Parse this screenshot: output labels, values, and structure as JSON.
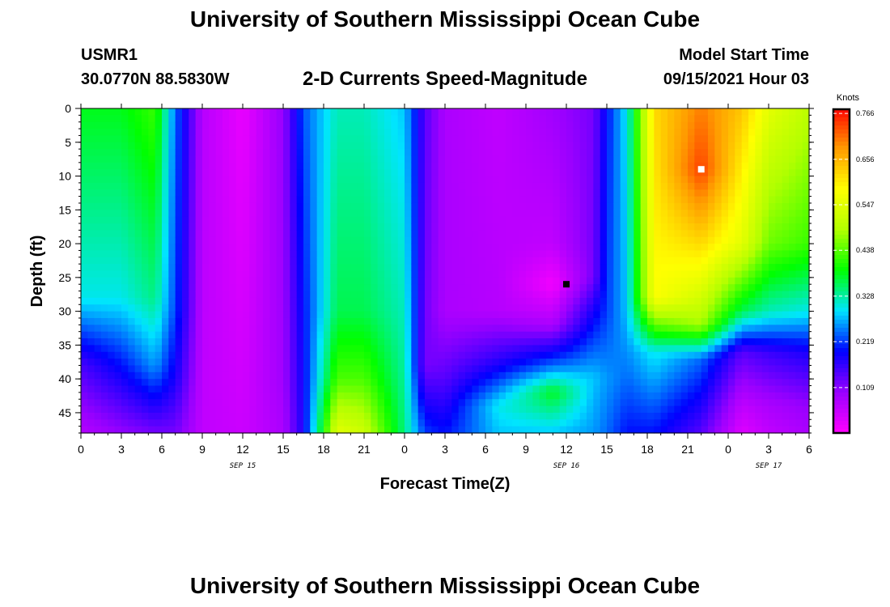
{
  "header": {
    "title": "University of Southern Mississippi Ocean Cube",
    "station_id": "USMR1",
    "station_coords": "30.0770N  88.5830W",
    "subtitle": "2-D Currents Speed-Magnitude",
    "model_start_label": "Model Start Time",
    "model_start_value": "09/15/2021 Hour 03"
  },
  "footer": {
    "title": "University of Southern Mississippi Ocean Cube"
  },
  "chart_data": {
    "type": "heatmap",
    "title": "2-D Currents Speed-Magnitude",
    "xlabel": "Forecast Time(Z)",
    "ylabel": "Depth (ft)",
    "x_tick_labels": [
      "0",
      "3",
      "6",
      "9",
      "12",
      "15",
      "18",
      "21",
      "0",
      "3",
      "6",
      "9",
      "12",
      "15",
      "18",
      "21",
      "0",
      "3",
      "6"
    ],
    "x_range_hours": [
      0,
      54
    ],
    "date_labels": [
      {
        "text": "SEP 15",
        "at_hour": 12
      },
      {
        "text": "SEP 16",
        "at_hour": 36
      },
      {
        "text": "SEP 17",
        "at_hour": 51
      }
    ],
    "y_tick_labels": [
      "0",
      "5",
      "10",
      "15",
      "20",
      "25",
      "30",
      "35",
      "40",
      "45"
    ],
    "y_range_ft": [
      0,
      48
    ],
    "y_inverted": true,
    "colorbar": {
      "title": "Knots",
      "ticks": [
        0.766,
        0.656,
        0.547,
        0.438,
        0.328,
        0.219,
        0.109
      ],
      "range": [
        0.0,
        0.78
      ],
      "colors": [
        "#ff00ff",
        "#9900ff",
        "#0000ff",
        "#00e5ff",
        "#00ff00",
        "#b3ff00",
        "#ffff00",
        "#ff9900",
        "#ff0000"
      ]
    },
    "markers": [
      {
        "hour": 36,
        "depth_ft": 26,
        "color": "#000000",
        "meaning": "minimum"
      },
      {
        "hour": 46,
        "depth_ft": 9,
        "color": "#ffffff",
        "meaning": "maximum"
      }
    ],
    "speed_columns": [
      {
        "hour": 0,
        "profile": [
          [
            0,
            0.38
          ],
          [
            28,
            0.3
          ],
          [
            38,
            0.15
          ],
          [
            48,
            0.07
          ]
        ]
      },
      {
        "hour": 3,
        "profile": [
          [
            0,
            0.38
          ],
          [
            28,
            0.3
          ],
          [
            38,
            0.2
          ],
          [
            48,
            0.1
          ]
        ]
      },
      {
        "hour": 5.5,
        "profile": [
          [
            0,
            0.42
          ],
          [
            28,
            0.34
          ],
          [
            38,
            0.26
          ],
          [
            48,
            0.12
          ]
        ]
      },
      {
        "hour": 7,
        "profile": [
          [
            0,
            0.24
          ],
          [
            30,
            0.22
          ],
          [
            40,
            0.18
          ],
          [
            48,
            0.12
          ]
        ]
      },
      {
        "hour": 9,
        "profile": [
          [
            0,
            0.07
          ],
          [
            48,
            0.06
          ]
        ]
      },
      {
        "hour": 12,
        "profile": [
          [
            0,
            0.02
          ],
          [
            48,
            0.05
          ]
        ]
      },
      {
        "hour": 15,
        "profile": [
          [
            0,
            0.1
          ],
          [
            40,
            0.09
          ],
          [
            48,
            0.08
          ]
        ]
      },
      {
        "hour": 16.5,
        "profile": [
          [
            0,
            0.23
          ],
          [
            48,
            0.18
          ]
        ]
      },
      {
        "hour": 19,
        "profile": [
          [
            0,
            0.32
          ],
          [
            30,
            0.36
          ],
          [
            40,
            0.43
          ],
          [
            48,
            0.55
          ]
        ]
      },
      {
        "hour": 21,
        "profile": [
          [
            0,
            0.32
          ],
          [
            30,
            0.36
          ],
          [
            40,
            0.43
          ],
          [
            48,
            0.52
          ]
        ]
      },
      {
        "hour": 24,
        "profile": [
          [
            0,
            0.28
          ],
          [
            48,
            0.34
          ]
        ]
      },
      {
        "hour": 25.5,
        "profile": [
          [
            0,
            0.14
          ],
          [
            38,
            0.12
          ],
          [
            48,
            0.22
          ]
        ]
      },
      {
        "hour": 27,
        "profile": [
          [
            0,
            0.08
          ],
          [
            30,
            0.08
          ],
          [
            40,
            0.14
          ],
          [
            48,
            0.2
          ]
        ]
      },
      {
        "hour": 31,
        "profile": [
          [
            0,
            0.06
          ],
          [
            30,
            0.07
          ],
          [
            38,
            0.18
          ],
          [
            44,
            0.3
          ],
          [
            48,
            0.28
          ]
        ]
      },
      {
        "hour": 35,
        "profile": [
          [
            0,
            0.09
          ],
          [
            20,
            0.06
          ],
          [
            26,
            0.01
          ],
          [
            32,
            0.08
          ],
          [
            38,
            0.24
          ],
          [
            42,
            0.38
          ],
          [
            48,
            0.28
          ]
        ]
      },
      {
        "hour": 38,
        "profile": [
          [
            0,
            0.12
          ],
          [
            25,
            0.12
          ],
          [
            30,
            0.18
          ],
          [
            40,
            0.28
          ],
          [
            48,
            0.26
          ]
        ]
      },
      {
        "hour": 39,
        "profile": [
          [
            0,
            0.2
          ],
          [
            30,
            0.22
          ],
          [
            40,
            0.26
          ],
          [
            48,
            0.24
          ]
        ]
      },
      {
        "hour": 40.5,
        "profile": [
          [
            0,
            0.3
          ],
          [
            30,
            0.28
          ],
          [
            40,
            0.24
          ],
          [
            48,
            0.2
          ]
        ]
      },
      {
        "hour": 42.5,
        "profile": [
          [
            0,
            0.62
          ],
          [
            28,
            0.58
          ],
          [
            36,
            0.3
          ],
          [
            48,
            0.2
          ]
        ]
      },
      {
        "hour": 46,
        "profile": [
          [
            0,
            0.7
          ],
          [
            9,
            0.74
          ],
          [
            20,
            0.62
          ],
          [
            32,
            0.48
          ],
          [
            37,
            0.24
          ],
          [
            48,
            0.14
          ]
        ]
      },
      {
        "hour": 49,
        "profile": [
          [
            0,
            0.64
          ],
          [
            20,
            0.55
          ],
          [
            30,
            0.36
          ],
          [
            36,
            0.14
          ],
          [
            44,
            0.06
          ],
          [
            48,
            0.03
          ]
        ]
      },
      {
        "hour": 51,
        "profile": [
          [
            0,
            0.55
          ],
          [
            20,
            0.45
          ],
          [
            30,
            0.32
          ],
          [
            36,
            0.16
          ],
          [
            44,
            0.08
          ],
          [
            48,
            0.06
          ]
        ]
      },
      {
        "hour": 54,
        "profile": [
          [
            0,
            0.5
          ],
          [
            20,
            0.42
          ],
          [
            30,
            0.3
          ],
          [
            36,
            0.18
          ],
          [
            44,
            0.1
          ],
          [
            48,
            0.08
          ]
        ]
      }
    ]
  }
}
